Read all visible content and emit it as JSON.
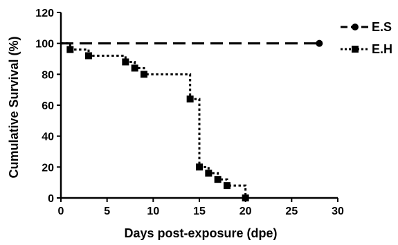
{
  "chart_data": {
    "type": "line",
    "title": "",
    "xlabel": "Days post-exposure (dpe)",
    "ylabel": "Cumulative Survival (%)",
    "xlim": [
      0,
      30
    ],
    "ylim": [
      0,
      120
    ],
    "xticks": [
      0,
      5,
      10,
      15,
      20,
      25,
      30
    ],
    "yticks": [
      0,
      20,
      40,
      60,
      80,
      100,
      120
    ],
    "grid": false,
    "legend_position": "top-right",
    "series": [
      {
        "name": "E.S",
        "marker": "circle",
        "line": "long-dash",
        "color": "#000000",
        "points": [
          [
            0,
            100
          ],
          [
            28,
            100
          ]
        ]
      },
      {
        "name": "E.H",
        "marker": "square",
        "line": "dotted-step",
        "color": "#000000",
        "points": [
          [
            1,
            96
          ],
          [
            3,
            92
          ],
          [
            7,
            88
          ],
          [
            8,
            84
          ],
          [
            9,
            80
          ],
          [
            14,
            64
          ],
          [
            15,
            20
          ],
          [
            16,
            16
          ],
          [
            17,
            12
          ],
          [
            18,
            8
          ],
          [
            20,
            0
          ]
        ]
      }
    ]
  }
}
